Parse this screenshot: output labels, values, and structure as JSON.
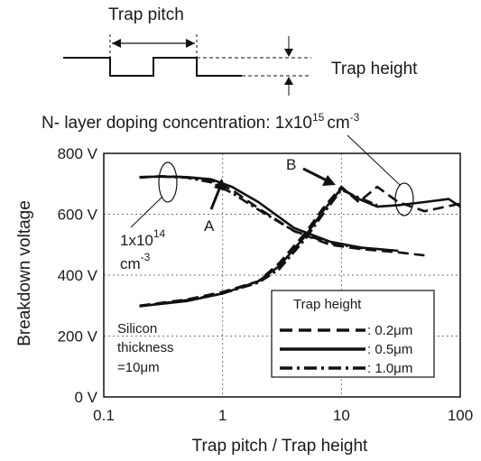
{
  "chart_data": {
    "type": "line",
    "title": "",
    "xlabel": "Trap pitch / Trap height",
    "ylabel": "Breakdown voltage",
    "x_scale": "log",
    "xlim": [
      0.1,
      100
    ],
    "ylim": [
      0,
      800
    ],
    "x_ticks": [
      "0.1",
      "1",
      "10",
      "100"
    ],
    "x_tick_values": [
      0.1,
      1,
      10,
      100
    ],
    "y_ticks": [
      "0 V",
      "200 V",
      "400 V",
      "600 V",
      "800 V"
    ],
    "y_tick_values": [
      0,
      200,
      400,
      600,
      800
    ],
    "grid": {
      "x": "major",
      "y": "major",
      "style": "dotted"
    },
    "legend": {
      "title": "Trap height",
      "placement": "bottom-right",
      "entries": [
        {
          "label": ": 0.2μm",
          "style": "dashed"
        },
        {
          "label": ": 0.5μm",
          "style": "solid"
        },
        {
          "label": ": 1.0μm",
          "style": "dashdot"
        }
      ]
    },
    "series": [
      {
        "doping": "1e14",
        "style": "dashed",
        "x": [
          0.2,
          0.3,
          0.5,
          0.8,
          1.2,
          2,
          4,
          8,
          15,
          30,
          50
        ],
        "y": [
          720,
          725,
          722,
          712,
          680,
          620,
          545,
          500,
          485,
          475,
          465
        ]
      },
      {
        "doping": "1e14",
        "style": "solid",
        "x": [
          0.2,
          0.3,
          0.5,
          0.8,
          1.2,
          2,
          4,
          8,
          15,
          30
        ],
        "y": [
          722,
          724,
          722,
          715,
          690,
          640,
          555,
          510,
          490,
          480
        ]
      },
      {
        "doping": "1e14",
        "style": "dashdot",
        "x": [
          0.2,
          0.3,
          0.5,
          0.8,
          1.2,
          2,
          4,
          8,
          15
        ],
        "y": [
          722,
          724,
          720,
          705,
          670,
          615,
          545,
          505,
          488
        ]
      },
      {
        "doping": "1e15",
        "style": "dashed",
        "x": [
          0.2,
          0.5,
          1,
          2,
          3,
          5,
          7,
          10,
          14,
          20,
          30,
          50,
          100
        ],
        "y": [
          300,
          320,
          345,
          380,
          440,
          540,
          620,
          690,
          640,
          690,
          640,
          610,
          635
        ]
      },
      {
        "doping": "1e15",
        "style": "solid",
        "x": [
          0.2,
          0.5,
          1,
          2,
          3,
          5,
          7,
          10,
          14,
          20,
          30,
          50,
          80,
          100
        ],
        "y": [
          298,
          315,
          340,
          380,
          430,
          530,
          610,
          685,
          650,
          625,
          630,
          640,
          650,
          625
        ]
      },
      {
        "doping": "1e15",
        "style": "dashdot",
        "x": [
          0.2,
          0.5,
          1,
          2,
          3,
          5,
          7,
          10,
          14,
          20
        ],
        "y": [
          298,
          318,
          340,
          375,
          420,
          520,
          600,
          680,
          655,
          630
        ]
      }
    ],
    "annotations": [
      {
        "id": "A",
        "text": "A"
      },
      {
        "id": "B",
        "text": "B"
      },
      {
        "id": "doping_low_base",
        "text": "1x10"
      },
      {
        "id": "doping_low_exp",
        "text": "14"
      },
      {
        "id": "doping_low_unit",
        "text": "cm"
      },
      {
        "id": "doping_low_unit_exp",
        "text": "-3"
      },
      {
        "id": "doping_high_base",
        "text": "N- layer doping concentration: 1x10"
      },
      {
        "id": "doping_high_exp",
        "text": "15"
      },
      {
        "id": "doping_high_unit",
        "text": "cm"
      },
      {
        "id": "doping_high_unit_exp",
        "text": "-3"
      },
      {
        "id": "silicon_1",
        "text": "Silicon"
      },
      {
        "id": "silicon_2",
        "text": "thickness"
      },
      {
        "id": "silicon_3",
        "text": "=10μm"
      }
    ]
  },
  "schematic": {
    "trap_pitch_label": "Trap pitch",
    "trap_height_label": "Trap height"
  }
}
